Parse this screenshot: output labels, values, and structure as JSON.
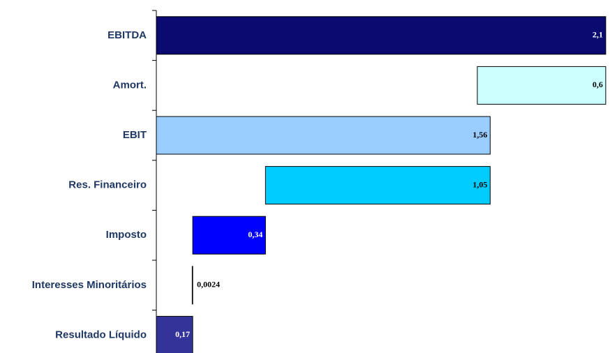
{
  "chart_data": {
    "type": "waterfall",
    "categories": [
      "EBITDA",
      "Amort.",
      "EBIT",
      "Res. Financeiro",
      "Imposto",
      "Interesses Minoritários",
      "Resultado Líquido"
    ],
    "values": [
      2.1,
      0.6,
      1.56,
      1.05,
      0.34,
      0.0024,
      0.17
    ],
    "value_labels": [
      "2,1",
      "0,6",
      "1,56",
      "1,05",
      "0,34",
      "0,0024",
      "0,17"
    ],
    "measure": [
      "total",
      "decrease",
      "total",
      "decrease",
      "decrease",
      "decrease",
      "total"
    ],
    "colors": [
      "#0a0a70",
      "#ccffff",
      "#99ccff",
      "#00ccff",
      "#0000ff",
      "#000000",
      "#333399"
    ],
    "xlim": [
      0,
      2.12
    ]
  }
}
